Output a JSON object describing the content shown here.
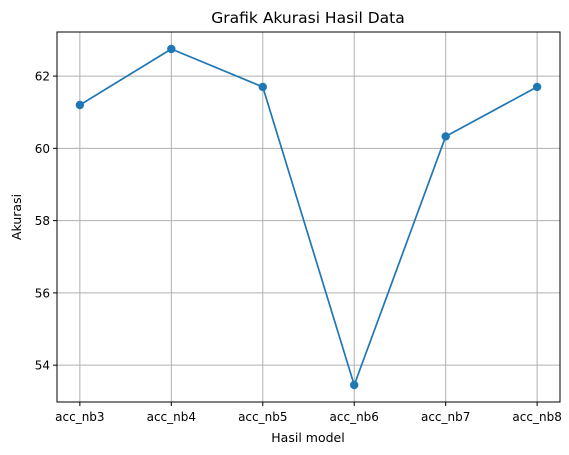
{
  "chart_data": {
    "type": "line",
    "title": "Grafik Akurasi Hasil Data",
    "xlabel": "Hasil model",
    "ylabel": "Akurasi",
    "categories": [
      "acc_nb3",
      "acc_nb4",
      "acc_nb5",
      "acc_nb6",
      "acc_nb7",
      "acc_nb8"
    ],
    "series": [
      {
        "values": [
          61.2,
          62.75,
          61.7,
          53.45,
          60.33,
          61.7
        ],
        "color": "#1f77b4",
        "marker": "circle"
      }
    ],
    "ylim": [
      52.98,
      63.22
    ],
    "yticks": [
      54,
      56,
      58,
      60,
      62
    ],
    "grid": true
  }
}
